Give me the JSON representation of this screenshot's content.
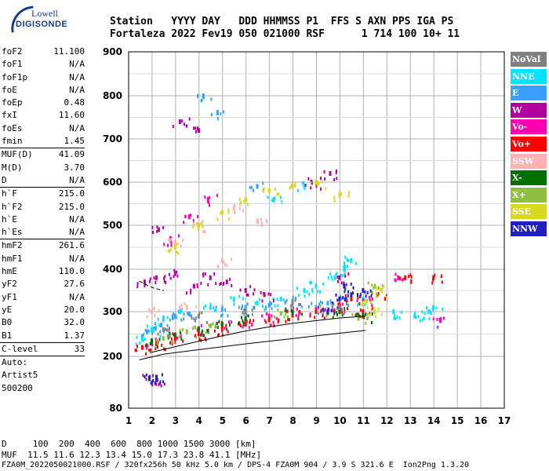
{
  "logo": {
    "line1": "Lowell",
    "line2": "DIGISONDE"
  },
  "header": {
    "line1": "Station   YYYY DAY   DDD HHMMSS P1  FFS S AXN PPS IGA PS",
    "line2": "Fortaleza 2022 Fev19 050 021000 RSF      1 714 100 10+ 11"
  },
  "params": {
    "group1": [
      {
        "k": "foF2",
        "v": "11.100"
      },
      {
        "k": "foF1",
        "v": "N/A"
      },
      {
        "k": "foF1p",
        "v": "N/A"
      },
      {
        "k": "foE",
        "v": "N/A"
      },
      {
        "k": "foEp",
        "v": "0.48"
      },
      {
        "k": "fxI",
        "v": "11.60"
      },
      {
        "k": "foEs",
        "v": "N/A"
      },
      {
        "k": "fmin",
        "v": "1.45"
      }
    ],
    "group2": [
      {
        "k": "MUF(D)",
        "v": "41.09"
      },
      {
        "k": "M(D)",
        "v": "3.70"
      },
      {
        "k": "D",
        "v": "N/A"
      }
    ],
    "group3": [
      {
        "k": "h`F",
        "v": "215.0"
      },
      {
        "k": "h`F2",
        "v": "215.0"
      },
      {
        "k": "h`E",
        "v": "N/A"
      },
      {
        "k": "h`Es",
        "v": "N/A"
      }
    ],
    "group4": [
      {
        "k": "hmF2",
        "v": "261.6"
      },
      {
        "k": "hmF1",
        "v": "N/A"
      },
      {
        "k": "hmE",
        "v": "110.0"
      },
      {
        "k": "yF2",
        "v": "27.6"
      },
      {
        "k": "yF1",
        "v": "N/A"
      },
      {
        "k": "yE",
        "v": "20.0"
      },
      {
        "k": "B0",
        "v": "32.0"
      },
      {
        "k": "B1",
        "v": "1.37"
      }
    ],
    "clevel": {
      "k": "C-level",
      "v": "33"
    },
    "auto": [
      "Auto:",
      "Artist5",
      "500200"
    ]
  },
  "footer": {
    "d_row": "D     100  200  400  600  800 1000 1500 3000 [km]",
    "muf_row": "MUF  11.5 11.6 12.3 13.4 15.0 17.3 23.8 41.1 [MHz]",
    "file_row": "FZA0M_2022050021000.RSF / 320fx256h 50 kHz 5.0 km / DPS-4 FZA0M 904 / 3.9 S 321.6 E  Ion2Png 1.3.20"
  },
  "legend": [
    {
      "label": "NoVal",
      "color": "#808080"
    },
    {
      "label": "NNE",
      "color": "#00e5ff"
    },
    {
      "label": "E",
      "color": "#3aa0ff"
    },
    {
      "label": "W",
      "color": "#b000a0"
    },
    {
      "label": "Vo-",
      "color": "#ff00b0"
    },
    {
      "label": "Vo+",
      "color": "#ff0000"
    },
    {
      "label": "SSW",
      "color": "#ffb0b0"
    },
    {
      "label": "X-",
      "color": "#007000"
    },
    {
      "label": "X+",
      "color": "#90c040"
    },
    {
      "label": "SSE",
      "color": "#d8d820"
    },
    {
      "label": "NNW",
      "color": "#2020c0"
    }
  ],
  "chart_data": {
    "type": "scatter",
    "title": "",
    "xlabel": "",
    "ylabel": "",
    "xlim": [
      1,
      17
    ],
    "ylim": [
      80,
      900
    ],
    "x_ticks": [
      1,
      2,
      3,
      4,
      5,
      6,
      7,
      8,
      9,
      10,
      11,
      12,
      13,
      14,
      15,
      16,
      17
    ],
    "y_ticks": [
      80,
      200,
      300,
      400,
      500,
      600,
      700,
      800,
      900
    ],
    "grid": true,
    "legend_position": "right",
    "series": [
      {
        "name": "NNE",
        "color": "#00e5ff",
        "points": [
          [
            1.6,
            240
          ],
          [
            2.0,
            260
          ],
          [
            2.5,
            285
          ],
          [
            3.2,
            300
          ],
          [
            4.5,
            310
          ],
          [
            5.5,
            330
          ],
          [
            6.5,
            320
          ],
          [
            7.5,
            330
          ],
          [
            8.5,
            350
          ],
          [
            9.0,
            360
          ],
          [
            9.8,
            380
          ],
          [
            10.2,
            400
          ],
          [
            10.5,
            420
          ],
          [
            11.0,
            330
          ],
          [
            12.3,
            300
          ],
          [
            13.2,
            290
          ],
          [
            13.8,
            300
          ],
          [
            14.0,
            310
          ],
          [
            7.2,
            560
          ],
          [
            8.5,
            590
          ]
        ]
      },
      {
        "name": "E",
        "color": "#3aa0ff",
        "points": [
          [
            1.8,
            255
          ],
          [
            2.4,
            270
          ],
          [
            3.0,
            290
          ],
          [
            3.6,
            295
          ],
          [
            5.0,
            305
          ],
          [
            6.0,
            310
          ],
          [
            7.0,
            315
          ],
          [
            8.0,
            325
          ],
          [
            9.0,
            310
          ],
          [
            9.5,
            320
          ],
          [
            10.3,
            330
          ],
          [
            4.2,
            800
          ],
          [
            4.8,
            760
          ],
          [
            6.5,
            590
          ]
        ]
      },
      {
        "name": "W",
        "color": "#b000a0",
        "points": [
          [
            1.7,
            370
          ],
          [
            2.2,
            380
          ],
          [
            3.0,
            390
          ],
          [
            3.8,
            360
          ],
          [
            4.5,
            380
          ],
          [
            5.2,
            370
          ],
          [
            6.0,
            350
          ],
          [
            6.8,
            340
          ],
          [
            10.0,
            380
          ],
          [
            3.2,
            740
          ],
          [
            4.0,
            720
          ],
          [
            2.3,
            490
          ],
          [
            1.9,
            150
          ],
          [
            2.2,
            145
          ],
          [
            8.8,
            600
          ],
          [
            9.6,
            620
          ]
        ]
      },
      {
        "name": "Vo-",
        "color": "#ff00b0",
        "points": [
          [
            2.0,
            230
          ],
          [
            3.0,
            245
          ],
          [
            4.0,
            260
          ],
          [
            5.0,
            270
          ],
          [
            6.0,
            280
          ],
          [
            7.0,
            290
          ],
          [
            8.0,
            300
          ],
          [
            9.0,
            305
          ],
          [
            10.0,
            315
          ],
          [
            11.0,
            325
          ],
          [
            12.5,
            380
          ],
          [
            14.3,
            280
          ],
          [
            2.8,
            470
          ],
          [
            3.6,
            520
          ],
          [
            4.4,
            560
          ]
        ]
      },
      {
        "name": "Vo+",
        "color": "#ff0000",
        "points": [
          [
            1.6,
            220
          ],
          [
            2.2,
            228
          ],
          [
            3.0,
            240
          ],
          [
            4.0,
            250
          ],
          [
            5.0,
            262
          ],
          [
            6.0,
            272
          ],
          [
            7.0,
            282
          ],
          [
            8.0,
            292
          ],
          [
            9.0,
            300
          ],
          [
            10.0,
            310
          ],
          [
            10.5,
            330
          ],
          [
            11.0,
            300
          ],
          [
            11.6,
            340
          ],
          [
            12.8,
            380
          ],
          [
            14.0,
            380
          ]
        ]
      },
      {
        "name": "SSW",
        "color": "#ffb0b0",
        "points": [
          [
            2.0,
            300
          ],
          [
            3.5,
            310
          ],
          [
            5.0,
            420
          ],
          [
            6.5,
            510
          ],
          [
            3.0,
            460
          ],
          [
            4.0,
            500
          ],
          [
            5.5,
            540
          ]
        ]
      },
      {
        "name": "X-",
        "color": "#007000",
        "points": [
          [
            2.0,
            235
          ],
          [
            3.0,
            248
          ],
          [
            4.0,
            262
          ],
          [
            5.0,
            272
          ],
          [
            6.0,
            285
          ],
          [
            8.0,
            298
          ],
          [
            10.0,
            300
          ],
          [
            11.0,
            290
          ]
        ]
      },
      {
        "name": "X+",
        "color": "#90c040",
        "points": [
          [
            2.5,
            240
          ],
          [
            3.5,
            255
          ],
          [
            4.5,
            268
          ],
          [
            7.5,
            296
          ],
          [
            9.5,
            305
          ],
          [
            10.8,
            285
          ],
          [
            11.5,
            360
          ]
        ]
      },
      {
        "name": "SSE",
        "color": "#d8d820",
        "points": [
          [
            4.0,
            500
          ],
          [
            5.0,
            530
          ],
          [
            6.0,
            560
          ],
          [
            7.0,
            580
          ],
          [
            8.0,
            590
          ],
          [
            9.0,
            600
          ],
          [
            10.0,
            570
          ],
          [
            11.0,
            320
          ],
          [
            11.8,
            350
          ],
          [
            3.0,
            450
          ],
          [
            11.5,
            300
          ]
        ]
      },
      {
        "name": "NNW",
        "color": "#2020c0",
        "points": [
          [
            9.5,
            300
          ],
          [
            10.0,
            330
          ],
          [
            10.5,
            340
          ],
          [
            10.2,
            360
          ],
          [
            11.0,
            350
          ],
          [
            1.9,
            148
          ],
          [
            2.2,
            152
          ]
        ]
      },
      {
        "name": "NoVal",
        "color": "#808080",
        "points": [
          [
            2.5,
            260
          ],
          [
            4.0,
            290
          ],
          [
            6.0,
            300
          ],
          [
            8.0,
            320
          ],
          [
            10.0,
            310
          ]
        ]
      }
    ],
    "trace_lines": [
      {
        "label": "profile",
        "style": "solid",
        "points": [
          [
            1.45,
            192
          ],
          [
            2.5,
            205
          ],
          [
            4.0,
            215
          ],
          [
            6.0,
            228
          ],
          [
            8.0,
            240
          ],
          [
            10.0,
            252
          ],
          [
            11.1,
            258
          ]
        ]
      },
      {
        "label": "profile",
        "style": "solid",
        "points": [
          [
            1.9,
            208
          ],
          [
            3.0,
            222
          ],
          [
            4.0,
            234
          ],
          [
            5.0,
            246
          ],
          [
            6.0,
            257
          ],
          [
            7.0,
            266
          ],
          [
            8.0,
            274
          ],
          [
            9.0,
            280
          ],
          [
            10.0,
            286
          ],
          [
            11.1,
            290
          ]
        ]
      },
      {
        "label": "profile",
        "style": "dashed",
        "points": [
          [
            1.45,
            372
          ],
          [
            1.8,
            362
          ],
          [
            2.1,
            355
          ],
          [
            2.5,
            350
          ]
        ]
      }
    ]
  }
}
